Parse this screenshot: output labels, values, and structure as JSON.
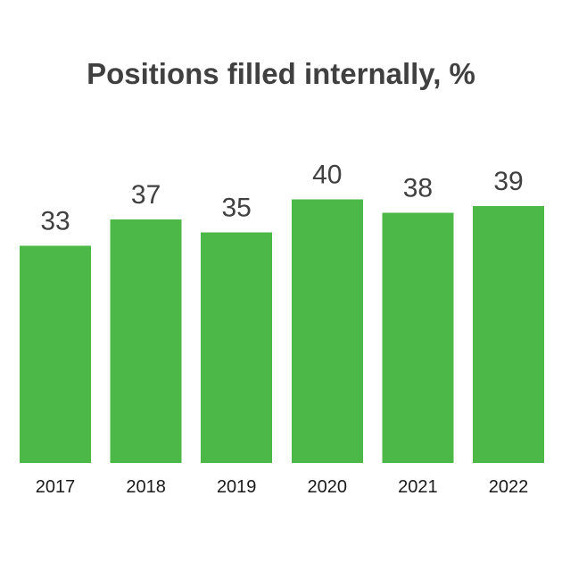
{
  "colors": {
    "bar": "#4cb848",
    "title": "#404040",
    "value_label": "#404040",
    "tick_label": "#1a1a1a",
    "background": "#ffffff"
  },
  "chart_data": {
    "type": "bar",
    "title": "Positions filled internally, %",
    "xlabel": "",
    "ylabel": "",
    "categories": [
      "2017",
      "2018",
      "2019",
      "2020",
      "2021",
      "2022"
    ],
    "values": [
      33,
      37,
      35,
      40,
      38,
      39
    ],
    "ylim": [
      0,
      40
    ],
    "grid": false,
    "legend": "none",
    "data_labels": true
  }
}
